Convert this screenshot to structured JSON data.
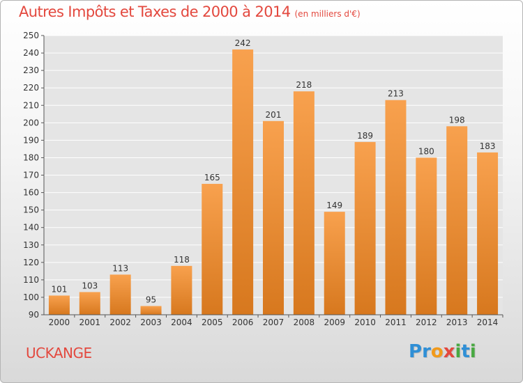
{
  "header": {
    "title": "Autres Impôts et Taxes de 2000 à 2014",
    "subtitle": "(en milliers d'€)"
  },
  "footer": {
    "city": "UCKANGE",
    "brand": "Proxiti",
    "brand_letters": [
      {
        "char": "P",
        "color": "#2f8fd6"
      },
      {
        "char": "r",
        "color": "#2f8fd6"
      },
      {
        "char": "o",
        "color": "#f29a1a"
      },
      {
        "char": "x",
        "color": "#e3483e"
      },
      {
        "char": "i",
        "color": "#49a942"
      },
      {
        "char": "t",
        "color": "#2f8fd6"
      },
      {
        "char": "i",
        "color": "#49a942"
      }
    ]
  },
  "colors": {
    "title": "#e3483e",
    "bar_light": "#f8a14e",
    "bar_dark": "#d7781e",
    "grid": "#ffffff",
    "plot_background": "#e5e5e5"
  },
  "chart_data": {
    "type": "bar",
    "title": "Autres Impôts et Taxes de 2000 à 2014",
    "subtitle": "(en milliers d'€)",
    "xlabel": "",
    "ylabel": "",
    "categories": [
      "2000",
      "2001",
      "2002",
      "2003",
      "2004",
      "2005",
      "2006",
      "2007",
      "2008",
      "2009",
      "2010",
      "2011",
      "2012",
      "2013",
      "2014"
    ],
    "values": [
      101,
      103,
      113,
      95,
      118,
      165,
      242,
      201,
      218,
      149,
      189,
      213,
      180,
      198,
      183
    ],
    "ylim": [
      90,
      250
    ],
    "yticks": [
      90,
      100,
      110,
      120,
      130,
      140,
      150,
      160,
      170,
      180,
      190,
      200,
      210,
      220,
      230,
      240,
      250
    ],
    "grid": true,
    "legend": "none",
    "data_labels": true
  }
}
